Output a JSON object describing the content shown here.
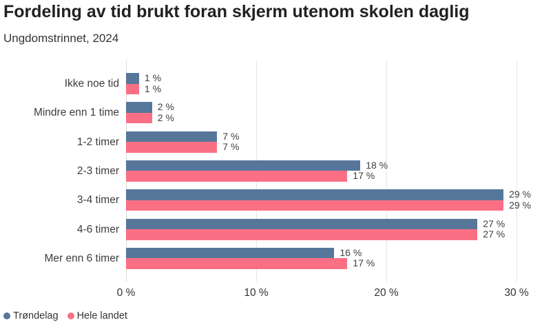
{
  "header": {
    "title": "Fordeling av tid brukt foran skjerm utenom skolen daglig",
    "subtitle": "Ungdomstrinnet, 2024"
  },
  "chart_data": {
    "type": "bar",
    "orientation": "horizontal",
    "title": "Fordeling av tid brukt foran skjerm utenom skolen daglig",
    "subtitle": "Ungdomstrinnet, 2024",
    "categories": [
      "Ikke noe tid",
      "Mindre enn 1 time",
      "1-2 timer",
      "2-3 timer",
      "3-4 timer",
      "4-6 timer",
      "Mer enn 6 timer"
    ],
    "series": [
      {
        "name": "Trøndelag",
        "color": "#56779A",
        "values": [
          1,
          2,
          7,
          18,
          29,
          27,
          16
        ],
        "labels": [
          "1 %",
          "2 %",
          "7 %",
          "18 %",
          "29 %",
          "27 %",
          "16 %"
        ]
      },
      {
        "name": "Hele landet",
        "color": "#FB6F84",
        "values": [
          1,
          2,
          7,
          17,
          29,
          27,
          17
        ],
        "labels": [
          "1 %",
          "2 %",
          "7 %",
          "17 %",
          "29 %",
          "27 %",
          "17 %"
        ]
      }
    ],
    "xlabel": "",
    "ylabel": "",
    "x_ticks": [
      0,
      10,
      20,
      30
    ],
    "x_tick_labels": [
      "0 %",
      "10 %",
      "20 %",
      "30 %"
    ],
    "xlim": [
      0,
      32
    ],
    "grid": "vertical-gridlines",
    "legend_position": "bottom-left",
    "colors": {
      "trondelag": "#56779A",
      "hele_landet": "#FB6F84",
      "gridline": "#e6e6e6"
    }
  }
}
